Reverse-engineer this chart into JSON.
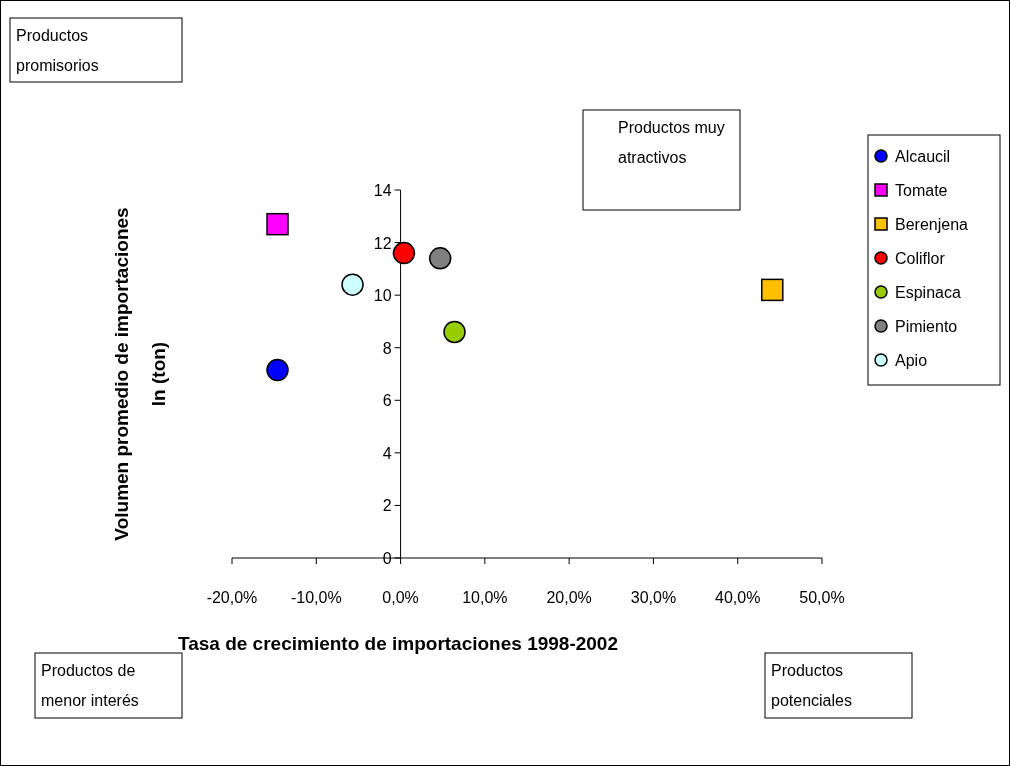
{
  "chart_data": {
    "type": "scatter",
    "xlabel": "Tasa de crecimiento de importaciones 1998-2002",
    "ylabel": "Volumen promedio de importaciones\nln (ton)",
    "xlim": [
      -20,
      50
    ],
    "xticks": [
      {
        "value": -20,
        "label": "-20,0%"
      },
      {
        "value": -10,
        "label": "-10,0%"
      },
      {
        "value": 0,
        "label": "0,0%"
      },
      {
        "value": 10,
        "label": "10,0%"
      },
      {
        "value": 20,
        "label": "20,0%"
      },
      {
        "value": 30,
        "label": "30,0%"
      },
      {
        "value": 40,
        "label": "40,0%"
      },
      {
        "value": 50,
        "label": "50,0%"
      }
    ],
    "ylim": [
      0,
      14
    ],
    "yticks": [
      0,
      2,
      4,
      6,
      8,
      10,
      12,
      14
    ],
    "grid": false,
    "legend": "right",
    "series": [
      {
        "name": "Alcaucil",
        "color": "#0000ff",
        "marker": "circle",
        "x": [
          -14.6
        ],
        "values": [
          7.15
        ]
      },
      {
        "name": "Tomate",
        "color": "#ff00ff",
        "marker": "square",
        "x": [
          -14.6
        ],
        "values": [
          12.7
        ]
      },
      {
        "name": "Berenjena",
        "color": "#ffc000",
        "marker": "square",
        "x": [
          44.1
        ],
        "values": [
          10.2
        ]
      },
      {
        "name": "Coliflor",
        "color": "#ff0000",
        "marker": "circle",
        "x": [
          0.4
        ],
        "values": [
          11.6
        ]
      },
      {
        "name": "Espinaca",
        "color": "#99cc00",
        "marker": "circle",
        "x": [
          6.4
        ],
        "values": [
          8.6
        ]
      },
      {
        "name": "Pimiento",
        "color": "#808080",
        "marker": "circle",
        "x": [
          4.7
        ],
        "values": [
          11.4
        ]
      },
      {
        "name": "Apio",
        "color": "#ccffff",
        "marker": "circle",
        "x": [
          -5.7
        ],
        "values": [
          10.4
        ]
      }
    ],
    "annotations": [
      "Productos\npromisorios",
      "Productos muy\natractivos",
      "Productos de\nmenor interés",
      "Productos\npotenciales"
    ]
  }
}
